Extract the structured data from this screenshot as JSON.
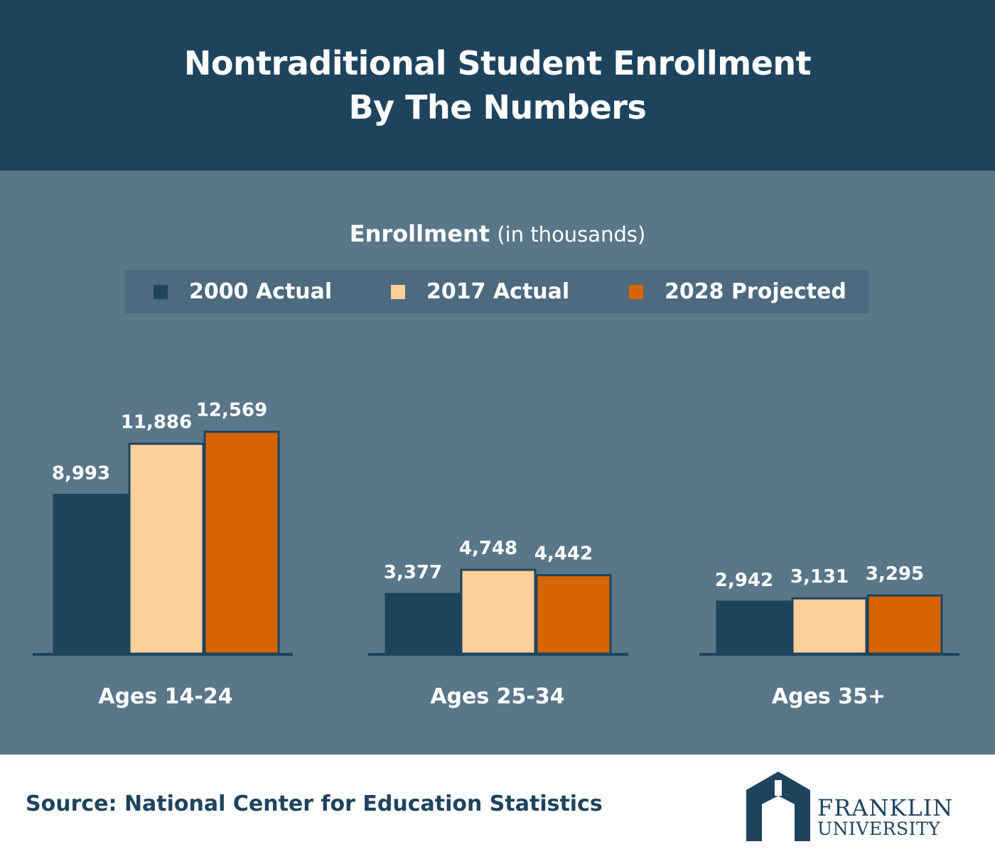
{
  "header": {
    "title_line1": "Nontraditional Student Enrollment",
    "title_line2": "By The Numbers"
  },
  "chart_data": {
    "type": "bar",
    "title": "Enrollment",
    "title_note": "(in thousands)",
    "categories": [
      "Ages 14-24",
      "Ages 25-34",
      "Ages 35+"
    ],
    "series": [
      {
        "name": "2000 Actual",
        "color": "#1e445d",
        "values": [
          8993,
          3377,
          2942
        ],
        "labels": [
          "8,993",
          "3,377",
          "2,942"
        ]
      },
      {
        "name": "2017 Actual",
        "color": "#fdcf9a",
        "values": [
          11886,
          4748,
          3131
        ],
        "labels": [
          "11,886",
          "4,748",
          "3,131"
        ]
      },
      {
        "name": "2028 Projected",
        "color": "#d66400",
        "values": [
          12569,
          4442,
          3295
        ],
        "labels": [
          "12,569",
          "4,442",
          "3,295"
        ]
      }
    ],
    "legend_position": "top",
    "grid": false
  },
  "footer": {
    "source": "Source: National Center for Education Statistics",
    "logo_line1": "FRANKLIN",
    "logo_line2": "UNIVERSITY"
  }
}
